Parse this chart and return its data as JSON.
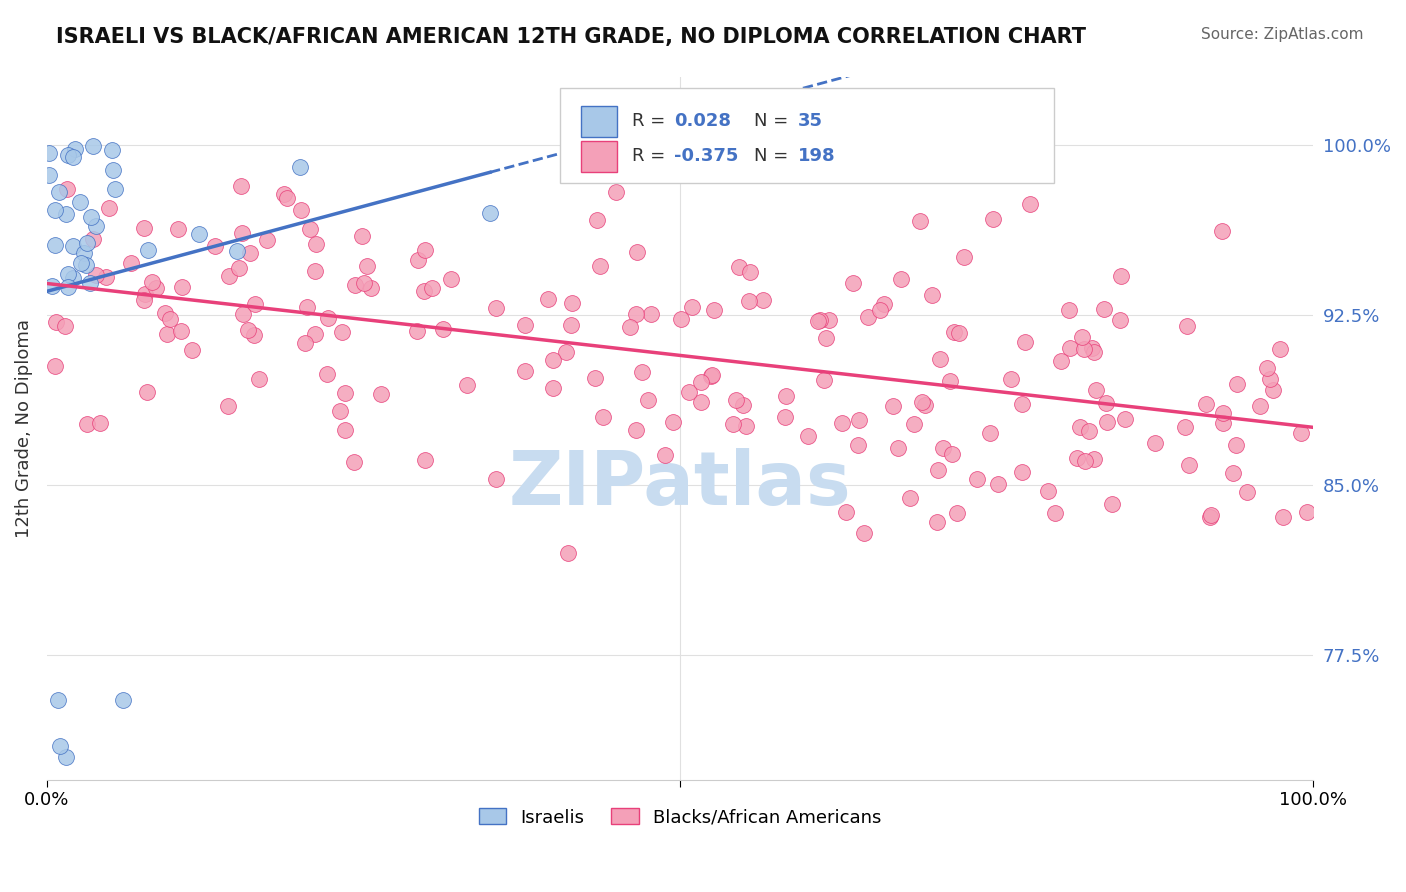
{
  "title": "ISRAELI VS BLACK/AFRICAN AMERICAN 12TH GRADE, NO DIPLOMA CORRELATION CHART",
  "source": "Source: ZipAtlas.com",
  "ylabel": "12th Grade, No Diploma",
  "xlim": [
    0.0,
    1.0
  ],
  "ylim": [
    0.72,
    1.03
  ],
  "yticks": [
    0.775,
    0.85,
    0.925,
    1.0
  ],
  "ytick_labels": [
    "77.5%",
    "85.0%",
    "92.5%",
    "100.0%"
  ],
  "r_israeli": 0.028,
  "n_israeli": 35,
  "r_black": -0.375,
  "n_black": 198,
  "color_israeli": "#A8C8E8",
  "color_black": "#F4A0B8",
  "trendline_israeli": "#4472C4",
  "trendline_black": "#E8407A",
  "watermark": "ZIPatlas",
  "watermark_color": "#C8DCF0",
  "legend_label_israeli": "Israelis",
  "legend_label_black": "Blacks/African Americans",
  "background_color": "#FFFFFF",
  "grid_color": "#E0E0E0",
  "seed_isr": 42,
  "seed_blk": 99
}
